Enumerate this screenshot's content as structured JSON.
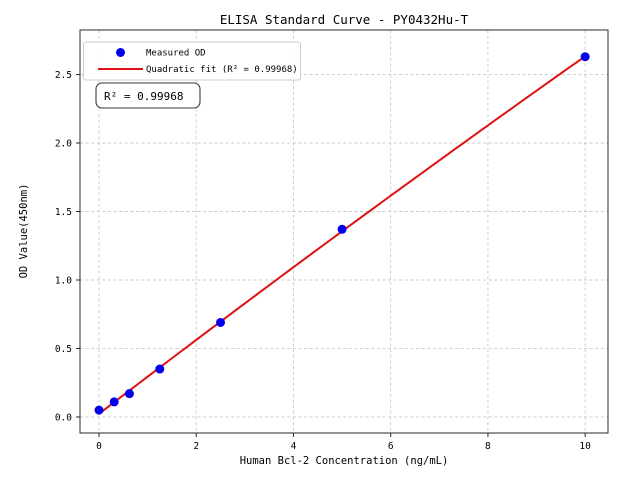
{
  "window": {
    "background": "#ffffff"
  },
  "chart_data": {
    "type": "scatter",
    "title": "ELISA Standard Curve - PY0432Hu-T",
    "xlabel": "Human Bcl-2 Concentration (ng/mL)",
    "ylabel": "OD Value(450nm)",
    "x": [
      0,
      0.3125,
      0.625,
      1.25,
      2.5,
      5,
      10
    ],
    "series": [
      {
        "name": "Measured OD",
        "kind": "scatter",
        "color": "#0000ee",
        "values": [
          0.05,
          0.11,
          0.17,
          0.35,
          0.69,
          1.37,
          2.63
        ]
      },
      {
        "name": "Quadratic fit (R² = 0.99968)",
        "kind": "quadratic-fit-line",
        "color": "#e01010",
        "fit_range": [
          0,
          10
        ]
      }
    ],
    "r_squared": 0.99968,
    "annotation": "R² = 0.99968",
    "x_ticks": {
      "values": [
        0,
        2,
        4,
        6,
        8,
        10
      ],
      "labels": [
        "0",
        "2",
        "4",
        "6",
        "8",
        "10"
      ]
    },
    "y_ticks": {
      "values": [
        0,
        0.5,
        1.0,
        1.5,
        2.0,
        2.5
      ],
      "labels": [
        "0.0",
        "0.5",
        "1.0",
        "1.5",
        "2.0",
        "2.5"
      ]
    },
    "xlim": [
      -0.391,
      10.47
    ],
    "ylim": [
      -0.117,
      2.825
    ],
    "grid": true,
    "legend_position": "upper-left",
    "grid_color": "#c9c9c9",
    "axis_color": "#2a2a2a",
    "text_color": "#000000",
    "legend_border_color": "#cccccc",
    "annotation_border_color": "#3a3a3a"
  }
}
